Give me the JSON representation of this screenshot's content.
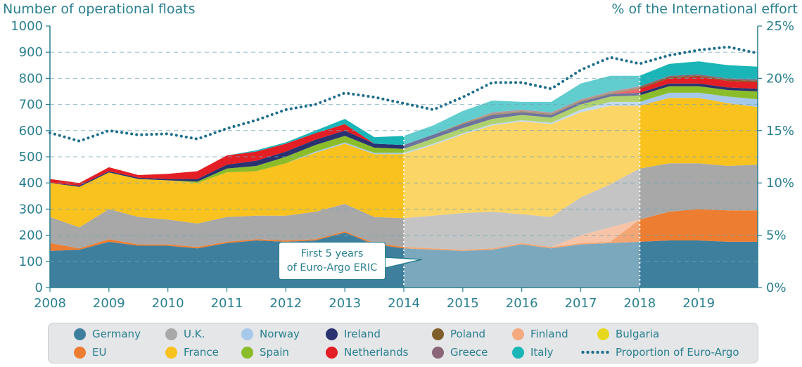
{
  "chart_data": {
    "type": "area",
    "stacked": true,
    "ylabel": "Number of operational floats",
    "y2label": "% of the International effort",
    "xlim": [
      2008,
      2020
    ],
    "ylim": [
      0,
      1000
    ],
    "y2lim": [
      0,
      25
    ],
    "x_ticks": [
      "2008",
      "2009",
      "2010",
      "2011",
      "2012",
      "2013",
      "2014",
      "2015",
      "2016",
      "2017",
      "2018",
      "2019"
    ],
    "y_ticks": [
      "0",
      "100",
      "200",
      "300",
      "400",
      "500",
      "600",
      "700",
      "800",
      "900",
      "1000"
    ],
    "y2_ticks": [
      "0%",
      "5%",
      "10%",
      "15%",
      "20%",
      "25%"
    ],
    "grid": "horizontal dashed",
    "x": [
      2008,
      2008.5,
      2009,
      2009.5,
      2010,
      2010.5,
      2011,
      2011.5,
      2012,
      2012.5,
      2013,
      2013.5,
      2014,
      2014.5,
      2015,
      2015.5,
      2016,
      2016.5,
      2017,
      2017.5,
      2018,
      2018.5,
      2019,
      2019.5,
      2020
    ],
    "series": [
      {
        "name": "Germany",
        "color": "#3f7f9e",
        "values": [
          140,
          145,
          175,
          160,
          160,
          150,
          170,
          180,
          175,
          180,
          210,
          165,
          150,
          145,
          140,
          145,
          165,
          150,
          165,
          170,
          175,
          180,
          180,
          175,
          175
        ]
      },
      {
        "name": "EU",
        "color": "#ed7d31",
        "values": [
          30,
          5,
          10,
          5,
          5,
          5,
          5,
          5,
          5,
          5,
          5,
          5,
          5,
          5,
          5,
          5,
          5,
          5,
          5,
          5,
          85,
          110,
          120,
          120,
          120
        ]
      },
      {
        "name": "Finland",
        "color": "#f4a97f",
        "values": [
          0,
          0,
          0,
          0,
          0,
          0,
          0,
          0,
          0,
          0,
          0,
          0,
          0,
          0,
          0,
          0,
          0,
          0,
          30,
          55,
          0,
          0,
          0,
          0,
          0
        ]
      },
      {
        "name": "U.K.",
        "color": "#a8a8a8",
        "values": [
          100,
          80,
          115,
          105,
          95,
          90,
          95,
          90,
          95,
          105,
          105,
          100,
          110,
          125,
          140,
          140,
          110,
          115,
          145,
          165,
          195,
          185,
          175,
          170,
          175
        ]
      },
      {
        "name": "France",
        "color": "#f9c21e",
        "values": [
          130,
          155,
          140,
          145,
          150,
          155,
          170,
          170,
          200,
          225,
          230,
          240,
          245,
          270,
          300,
          330,
          355,
          355,
          325,
          300,
          240,
          250,
          250,
          240,
          220
        ]
      },
      {
        "name": "Norway",
        "color": "#a6c8ea",
        "values": [
          0,
          0,
          0,
          0,
          0,
          0,
          0,
          0,
          0,
          5,
          5,
          5,
          5,
          5,
          5,
          5,
          5,
          5,
          10,
          15,
          15,
          20,
          20,
          25,
          30
        ]
      },
      {
        "name": "Spain",
        "color": "#8bbd2a",
        "values": [
          0,
          0,
          0,
          0,
          0,
          5,
          15,
          20,
          25,
          25,
          25,
          20,
          15,
          20,
          20,
          20,
          20,
          20,
          20,
          20,
          25,
          25,
          25,
          25,
          30
        ]
      },
      {
        "name": "Ireland",
        "color": "#2a3270",
        "values": [
          0,
          5,
          5,
          5,
          5,
          10,
          15,
          20,
          20,
          20,
          20,
          15,
          15,
          15,
          15,
          15,
          10,
          10,
          10,
          10,
          10,
          10,
          10,
          10,
          10
        ]
      },
      {
        "name": "Netherlands",
        "color": "#e31e24",
        "values": [
          15,
          10,
          15,
          10,
          20,
          30,
          35,
          35,
          30,
          25,
          25,
          0,
          0,
          0,
          0,
          0,
          0,
          0,
          0,
          0,
          15,
          20,
          25,
          25,
          25
        ]
      },
      {
        "name": "Poland",
        "color": "#7e5f29",
        "values": [
          0,
          0,
          0,
          0,
          0,
          0,
          0,
          0,
          0,
          0,
          0,
          0,
          0,
          0,
          5,
          5,
          5,
          5,
          5,
          5,
          5,
          5,
          5,
          5,
          5
        ]
      },
      {
        "name": "Greece",
        "color": "#8b6678",
        "values": [
          0,
          0,
          0,
          0,
          0,
          0,
          0,
          0,
          0,
          0,
          0,
          0,
          0,
          0,
          0,
          5,
          5,
          5,
          5,
          5,
          5,
          5,
          5,
          5,
          5
        ]
      },
      {
        "name": "Bulgaria",
        "color": "#e7d81e",
        "values": [
          0,
          0,
          0,
          0,
          0,
          0,
          0,
          0,
          0,
          0,
          0,
          0,
          0,
          0,
          0,
          0,
          0,
          0,
          0,
          0,
          0,
          0,
          0,
          0,
          0
        ]
      },
      {
        "name": "Italy",
        "color": "#19b5b7",
        "values": [
          0,
          0,
          0,
          0,
          0,
          0,
          0,
          5,
          5,
          10,
          20,
          25,
          35,
          35,
          45,
          45,
          30,
          40,
          60,
          60,
          40,
          45,
          50,
          50,
          50
        ]
      }
    ],
    "proportion": {
      "name": "Proportion of Euro-Argo",
      "color": "#1f6e8c",
      "axis": "right",
      "values": [
        14.8,
        14.0,
        15.0,
        14.6,
        14.7,
        14.2,
        15.2,
        16.0,
        17.0,
        17.5,
        18.6,
        18.2,
        17.6,
        17.0,
        18.2,
        19.6,
        19.6,
        19.0,
        20.8,
        22.0,
        21.4,
        22.2,
        22.7,
        23.0,
        22.4
      ]
    },
    "shaded_period": {
      "start": 2014,
      "end": 2018,
      "label": [
        "First 5 years",
        "of Euro-Argo ERIC"
      ]
    }
  },
  "legend_order": [
    [
      "Germany",
      "U.K.",
      "Norway",
      "Ireland",
      "Poland",
      "Finland",
      "Bulgaria"
    ],
    [
      "EU",
      "France",
      "Spain",
      "Netherlands",
      "Greece",
      "Italy",
      "Proportion of Euro-Argo"
    ]
  ]
}
